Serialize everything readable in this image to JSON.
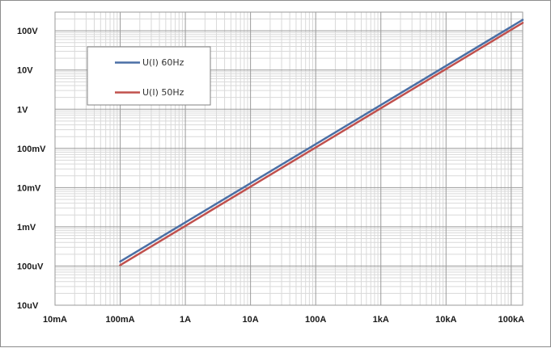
{
  "chart_data": {
    "type": "line",
    "title": "",
    "xlabel": "",
    "ylabel": "",
    "x_scale": "log",
    "y_scale": "log",
    "xlim": [
      0.01,
      150000
    ],
    "ylim": [
      1e-05,
      300
    ],
    "x_ticks": [
      {
        "value": 0.01,
        "label": "10mA"
      },
      {
        "value": 0.1,
        "label": "100mA"
      },
      {
        "value": 1,
        "label": "1A"
      },
      {
        "value": 10,
        "label": "10A"
      },
      {
        "value": 100,
        "label": "100A"
      },
      {
        "value": 1000,
        "label": "1kA"
      },
      {
        "value": 10000,
        "label": "10kA"
      },
      {
        "value": 100000,
        "label": "100kA"
      }
    ],
    "y_ticks": [
      {
        "value": 1e-05,
        "label": "10uV"
      },
      {
        "value": 0.0001,
        "label": "100uV"
      },
      {
        "value": 0.001,
        "label": "1mV"
      },
      {
        "value": 0.01,
        "label": "10mV"
      },
      {
        "value": 0.1,
        "label": "100mV"
      },
      {
        "value": 1,
        "label": "1V"
      },
      {
        "value": 10,
        "label": "10V"
      },
      {
        "value": 100,
        "label": "100V"
      }
    ],
    "grid": true,
    "legend_position": "top-left",
    "series": [
      {
        "name": "U(I) 60Hz",
        "color": "#4a6fa5",
        "x": [
          0.1,
          150000
        ],
        "y": [
          0.00013,
          190
        ]
      },
      {
        "name": "U(I) 50Hz",
        "color": "#c0504d",
        "x": [
          0.1,
          150000
        ],
        "y": [
          0.000105,
          160
        ]
      }
    ]
  }
}
